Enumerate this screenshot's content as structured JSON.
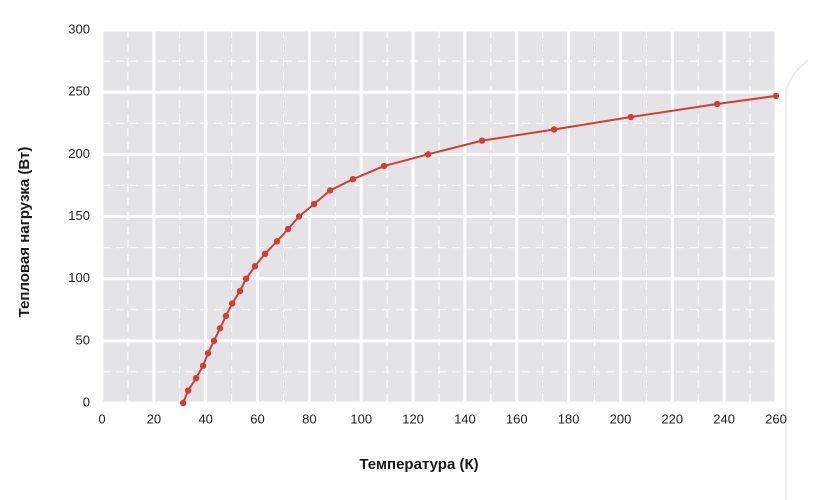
{
  "chart_data": {
    "type": "line",
    "x_label": "Температура (К)",
    "y_label": "Тепловая нагрузка (Вт)",
    "series": [
      {
        "color": "#d63c35",
        "x": [
          31.3,
          33.2,
          36.3,
          39,
          40.9,
          43.2,
          45.5,
          47.8,
          50.2,
          53.2,
          55.6,
          59,
          62.9,
          67.5,
          71.8,
          76,
          81.8,
          88,
          96.8,
          108.8,
          125.8,
          146.6,
          174.4,
          204,
          237.3,
          260
        ],
        "values": [
          0,
          10,
          20,
          30,
          40,
          50,
          60,
          70,
          80,
          90,
          100,
          110,
          120,
          130,
          140,
          150,
          160,
          171,
          180,
          190.6,
          200,
          211,
          220,
          230,
          240.5,
          247
        ]
      }
    ],
    "xlim": [
      0,
      260
    ],
    "xticks": [
      0,
      20,
      40,
      60,
      80,
      100,
      120,
      140,
      160,
      180,
      200,
      220,
      240,
      260
    ],
    "ylim": [
      0,
      300
    ],
    "yticks": [
      0,
      50,
      100,
      150,
      200,
      250,
      300
    ],
    "grid": true,
    "minor_grid": true
  }
}
